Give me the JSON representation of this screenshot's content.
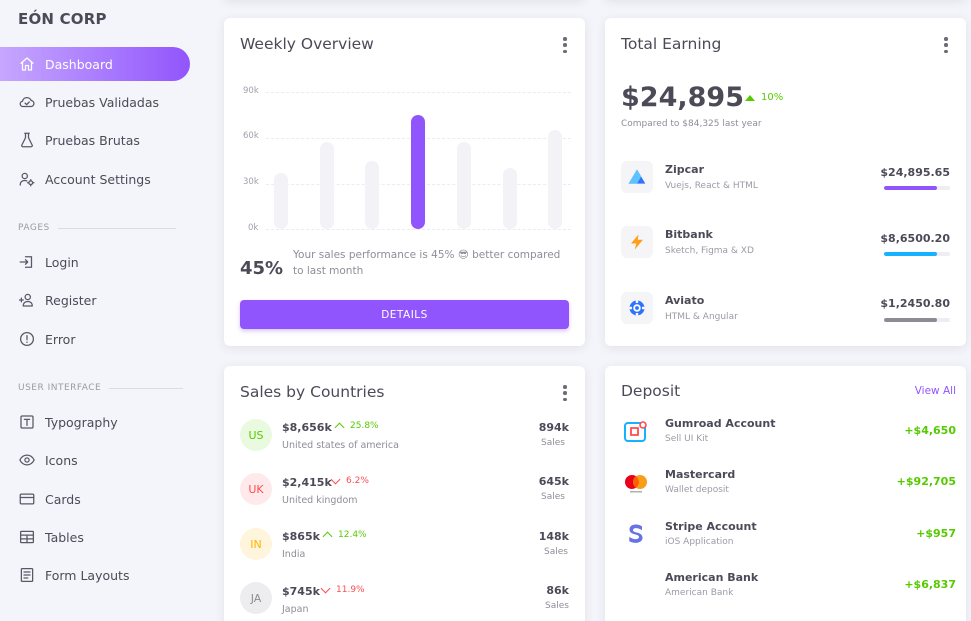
{
  "brand": "EÓN CORP",
  "sidebar": {
    "items": [
      {
        "label": "Dashboard",
        "icon": "home-icon"
      },
      {
        "label": "Pruebas Validadas",
        "icon": "cloud-check-icon"
      },
      {
        "label": "Pruebas Brutas",
        "icon": "flask-icon"
      },
      {
        "label": "Account Settings",
        "icon": "account-cog-icon"
      }
    ],
    "pages_label": "PAGES",
    "pages": [
      {
        "label": "Login",
        "icon": "login-icon"
      },
      {
        "label": "Register",
        "icon": "account-plus-icon"
      },
      {
        "label": "Error",
        "icon": "alert-circle-icon"
      }
    ],
    "ui_label": "USER INTERFACE",
    "ui": [
      {
        "label": "Typography",
        "icon": "format-letter-icon"
      },
      {
        "label": "Icons",
        "icon": "eye-icon"
      },
      {
        "label": "Cards",
        "icon": "credit-card-icon"
      },
      {
        "label": "Tables",
        "icon": "table-icon"
      },
      {
        "label": "Form Layouts",
        "icon": "form-icon"
      }
    ]
  },
  "weekly": {
    "title": "Weekly Overview",
    "percent": "45%",
    "message": "Your sales performance is 45% 😎 better compared to last month",
    "button": "DETAILS"
  },
  "chart_data": {
    "type": "bar",
    "title": "Weekly Overview",
    "yticks": [
      "90k",
      "60k",
      "30k",
      "0k"
    ],
    "ylim": [
      0,
      90
    ],
    "values": [
      37,
      57,
      45,
      75,
      57,
      40,
      65
    ],
    "highlight_index": 3,
    "colors": {
      "bar": "#f3f2f6",
      "highlight": "#9155fd"
    }
  },
  "earning": {
    "title": "Total Earning",
    "amount": "$24,895",
    "trend": "10%",
    "compare": "Compared to $84,325 last year",
    "items": [
      {
        "name": "Zipcar",
        "sub": "Vuejs, React & HTML",
        "value": "$24,895.65",
        "progress": 0.8,
        "color": "#9155fd",
        "logo": "zipcar-logo-icon"
      },
      {
        "name": "Bitbank",
        "sub": "Sketch, Figma & XD",
        "value": "$8,6500.20",
        "progress": 0.8,
        "color": "#16b1ff",
        "logo": "lightning-bolt-icon"
      },
      {
        "name": "Aviato",
        "sub": "HTML & Angular",
        "value": "$1,2450.80",
        "progress": 0.8,
        "color": "#8a8d93",
        "logo": "aviato-logo-icon"
      }
    ]
  },
  "countries": {
    "title": "Sales by Countries",
    "rows": [
      {
        "code": "US",
        "amount": "$8,656k",
        "trend": "25.8%",
        "direction": "up",
        "name": "United states of america",
        "sales": "894k",
        "sales_label": "Sales",
        "bg": "#eafae0",
        "fg": "#56ca00"
      },
      {
        "code": "UK",
        "amount": "$2,415k",
        "trend": "6.2%",
        "direction": "down",
        "name": "United kingdom",
        "sales": "645k",
        "sales_label": "Sales",
        "bg": "#ffe9ea",
        "fg": "#ff4c51"
      },
      {
        "code": "IN",
        "amount": "$865k",
        "trend": "12.4%",
        "direction": "up",
        "name": "India",
        "sales": "148k",
        "sales_label": "Sales",
        "bg": "#fff5dd",
        "fg": "#ffb400"
      },
      {
        "code": "JA",
        "amount": "$745k",
        "trend": "11.9%",
        "direction": "down",
        "name": "Japan",
        "sales": "86k",
        "sales_label": "Sales",
        "bg": "#ededf0",
        "fg": "#8a8d93"
      }
    ]
  },
  "deposit": {
    "title": "Deposit",
    "view_all": "View All",
    "rows": [
      {
        "name": "Gumroad Account",
        "sub": "Sell UI Kit",
        "value": "+$4,650",
        "logo": "gumroad-logo-icon"
      },
      {
        "name": "Mastercard",
        "sub": "Wallet deposit",
        "value": "+$92,705",
        "logo": "mastercard-logo-icon"
      },
      {
        "name": "Stripe Account",
        "sub": "iOS Application",
        "value": "+$957",
        "logo": "stripe-logo-icon"
      },
      {
        "name": "American Bank",
        "sub": "American Bank",
        "value": "+$6,837",
        "logo": "american-bank-logo-icon"
      }
    ]
  }
}
